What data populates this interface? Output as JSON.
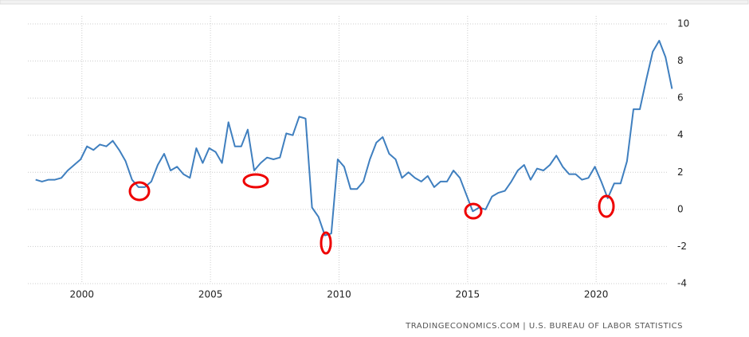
{
  "chart_data": {
    "type": "line",
    "x": [
      1998.2,
      1998.45,
      1998.7,
      1998.95,
      1999.2,
      1999.45,
      1999.7,
      1999.95,
      2000.2,
      2000.45,
      2000.7,
      2000.95,
      2001.2,
      2001.45,
      2001.7,
      2001.95,
      2002.2,
      2002.45,
      2002.7,
      2002.95,
      2003.2,
      2003.45,
      2003.7,
      2003.95,
      2004.2,
      2004.45,
      2004.7,
      2004.95,
      2005.2,
      2005.45,
      2005.7,
      2005.95,
      2006.2,
      2006.45,
      2006.7,
      2006.95,
      2007.2,
      2007.45,
      2007.7,
      2007.95,
      2008.2,
      2008.45,
      2008.7,
      2008.95,
      2009.2,
      2009.45,
      2009.7,
      2009.95,
      2010.2,
      2010.45,
      2010.7,
      2010.95,
      2011.2,
      2011.45,
      2011.7,
      2011.95,
      2012.2,
      2012.45,
      2012.7,
      2012.95,
      2013.2,
      2013.45,
      2013.7,
      2013.95,
      2014.2,
      2014.45,
      2014.7,
      2014.95,
      2015.2,
      2015.45,
      2015.7,
      2015.95,
      2016.2,
      2016.45,
      2016.7,
      2016.95,
      2017.2,
      2017.45,
      2017.7,
      2017.95,
      2018.2,
      2018.45,
      2018.7,
      2018.95,
      2019.2,
      2019.45,
      2019.7,
      2019.95,
      2020.2,
      2020.45,
      2020.7,
      2020.95,
      2021.2,
      2021.45,
      2021.7,
      2021.95,
      2022.2,
      2022.45,
      2022.7,
      2022.95
    ],
    "values": [
      1.6,
      1.5,
      1.6,
      1.6,
      1.7,
      2.1,
      2.4,
      2.7,
      3.4,
      3.2,
      3.5,
      3.4,
      3.7,
      3.2,
      2.6,
      1.6,
      1.2,
      1.2,
      1.5,
      2.4,
      3.0,
      2.1,
      2.3,
      1.9,
      1.7,
      3.3,
      2.5,
      3.3,
      3.1,
      2.5,
      4.7,
      3.4,
      3.4,
      4.3,
      2.1,
      2.5,
      2.8,
      2.7,
      2.8,
      4.1,
      4.0,
      5.0,
      4.9,
      0.1,
      -0.4,
      -1.4,
      -1.3,
      2.7,
      2.3,
      1.1,
      1.1,
      1.5,
      2.7,
      3.6,
      3.9,
      3.0,
      2.7,
      1.7,
      2.0,
      1.7,
      1.5,
      1.8,
      1.2,
      1.5,
      1.5,
      2.1,
      1.7,
      0.8,
      -0.1,
      0.1,
      0.0,
      0.7,
      0.9,
      1.0,
      1.5,
      2.1,
      2.4,
      1.6,
      2.2,
      2.1,
      2.4,
      2.9,
      2.3,
      1.9,
      1.9,
      1.6,
      1.7,
      2.3,
      1.5,
      0.6,
      1.4,
      1.4,
      2.6,
      5.4,
      5.4,
      7.0,
      8.5,
      9.1,
      8.2,
      6.5
    ],
    "color": "#3f7fbf",
    "xlim": [
      1997.9,
      2023.0
    ],
    "xticks": [
      2000,
      2005,
      2010,
      2015,
      2020
    ],
    "ylim": [
      -4,
      10
    ],
    "yticks": [
      -4,
      -2,
      0,
      2,
      4,
      6,
      8,
      10
    ],
    "grid": true,
    "source": "TRADINGECONOMICS.COM | U.S. BUREAU OF LABOR STATISTICS"
  }
}
